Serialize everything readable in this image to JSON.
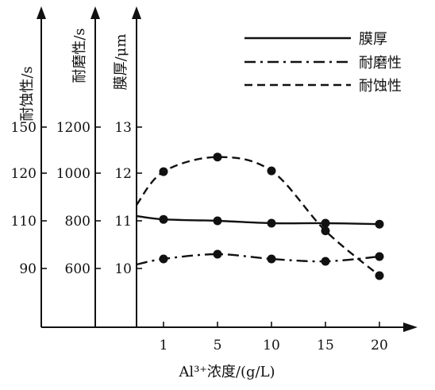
{
  "chart_data": {
    "type": "line",
    "xlabel": "Al³⁺浓度/(g/L)",
    "x": [
      1,
      5,
      10,
      15,
      20
    ],
    "x_ticks": [
      "1",
      "5",
      "10",
      "15",
      "20"
    ],
    "axes": [
      {
        "id": "corrosion",
        "label": "耐蚀性/s",
        "ticks": [
          90,
          110,
          120,
          150
        ],
        "tick_labels": [
          "90",
          "110",
          "120",
          "150"
        ],
        "range": [
          85,
          150
        ]
      },
      {
        "id": "wear",
        "label": "耐磨性/s",
        "ticks": [
          600,
          800,
          1000,
          1200
        ],
        "tick_labels": [
          "600",
          "800",
          "1000",
          "1200"
        ],
        "range": [
          500,
          1200
        ]
      },
      {
        "id": "thickness",
        "label": "膜厚/μm",
        "ticks": [
          10,
          11,
          12,
          13
        ],
        "tick_labels": [
          "10",
          "11",
          "12",
          "13"
        ],
        "range": [
          9,
          13
        ]
      }
    ],
    "series": [
      {
        "name": "膜厚",
        "axis": "thickness",
        "style": "solid",
        "values": [
          11.03,
          11.0,
          10.95,
          10.95,
          10.93
        ]
      },
      {
        "name": "耐磨性",
        "axis": "wear",
        "style": "dashdot",
        "values": [
          640,
          660,
          640,
          630,
          650
        ]
      },
      {
        "name": "耐蚀性",
        "axis": "corrosion",
        "style": "dashed",
        "values": [
          121,
          130.5,
          121.5,
          105.8,
          87
        ]
      }
    ],
    "legend": "top-right"
  }
}
